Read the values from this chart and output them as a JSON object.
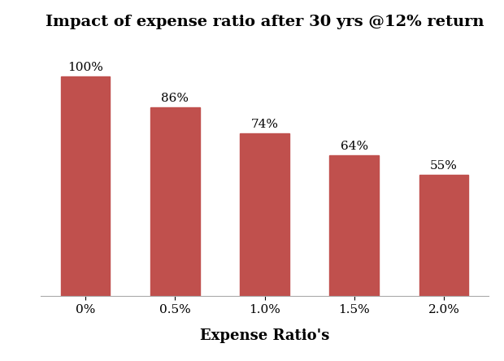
{
  "title": "Impact of expense ratio after 30 yrs @12% return",
  "categories": [
    "0%",
    "0.5%",
    "1.0%",
    "1.5%",
    "2.0%"
  ],
  "values": [
    100,
    86,
    74,
    64,
    55
  ],
  "labels": [
    "100%",
    "86%",
    "74%",
    "64%",
    "55%"
  ],
  "bar_color": "#c0504d",
  "xlabel": "Expense Ratio's",
  "ylabel": "",
  "ylim": [
    0,
    115
  ],
  "title_fontsize": 14,
  "label_fontsize": 11,
  "xlabel_fontsize": 13,
  "tick_fontsize": 11,
  "background_color": "#ffffff",
  "bar_width": 0.55
}
